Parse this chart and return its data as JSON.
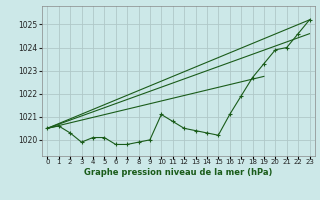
{
  "bg_color": "#cce8e8",
  "grid_color": "#b0c8c8",
  "line_color": "#1a5c1a",
  "marker_color": "#1a5c1a",
  "title": "Graphe pression niveau de la mer (hPa)",
  "xlim": [
    -0.5,
    23.5
  ],
  "ylim": [
    1019.3,
    1025.8
  ],
  "yticks": [
    1020,
    1021,
    1022,
    1023,
    1024,
    1025
  ],
  "xtick_labels": [
    "0",
    "1",
    "2",
    "3",
    "4",
    "5",
    "6",
    "7",
    "8",
    "9",
    "10",
    "11",
    "12",
    "13",
    "14",
    "15",
    "16",
    "17",
    "18",
    "19",
    "20",
    "21",
    "22",
    "23"
  ],
  "series_measured": [
    1020.5,
    1020.6,
    1020.3,
    1019.9,
    1020.1,
    1020.1,
    1019.8,
    1019.8,
    1019.9,
    1020.0,
    1021.1,
    1020.8,
    1020.5,
    1020.4,
    1020.3,
    1020.2,
    1021.1,
    1021.9,
    1022.7,
    1023.3,
    1023.9,
    1024.0,
    1024.6,
    1025.2
  ],
  "trend1_x": [
    0,
    23
  ],
  "trend1_y": [
    1020.5,
    1025.2
  ],
  "trend2_x": [
    0,
    23
  ],
  "trend2_y": [
    1020.5,
    1024.6
  ],
  "trend3_x": [
    0,
    19
  ],
  "trend3_y": [
    1020.5,
    1022.75
  ]
}
